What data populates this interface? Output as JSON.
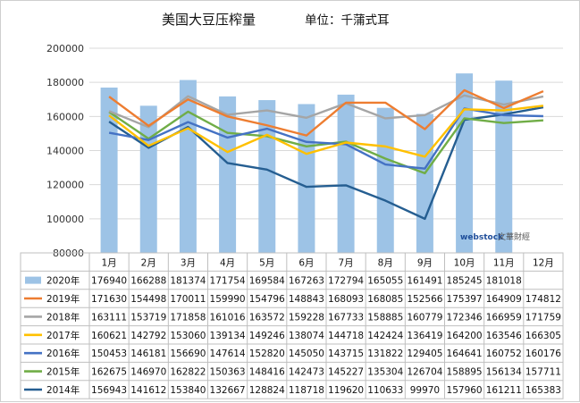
{
  "chart_data": {
    "type": "bar",
    "title": "美国大豆压榨量",
    "subtitle": "单位：千蒲式耳",
    "categories": [
      "1月",
      "2月",
      "3月",
      "4月",
      "5月",
      "6月",
      "7月",
      "8月",
      "9月",
      "10月",
      "11月",
      "12月"
    ],
    "ylim": [
      80000,
      200000
    ],
    "yticks": [
      "80000",
      "100000",
      "120000",
      "140000",
      "160000",
      "180000",
      "200000"
    ],
    "grid": true,
    "legend": "data-table",
    "series": [
      {
        "name": "2020年",
        "kind": "bar",
        "color": "#9dc3e6",
        "values": [
          176940,
          166288,
          181374,
          171754,
          169584,
          167263,
          172794,
          165055,
          161491,
          185245,
          181018,
          null
        ]
      },
      {
        "name": "2019年",
        "kind": "line",
        "color": "#ed7d31",
        "values": [
          171630,
          154498,
          170011,
          159990,
          154796,
          148843,
          168093,
          168085,
          152566,
          175397,
          164909,
          174812
        ]
      },
      {
        "name": "2018年",
        "kind": "line",
        "color": "#a5a5a5",
        "values": [
          163111,
          153719,
          171858,
          161016,
          163572,
          159228,
          167733,
          158885,
          160779,
          172346,
          166959,
          171759
        ]
      },
      {
        "name": "2017年",
        "kind": "line",
        "color": "#ffc000",
        "values": [
          160621,
          142792,
          153060,
          139134,
          149246,
          138074,
          144718,
          142424,
          136419,
          164200,
          163546,
          166305
        ]
      },
      {
        "name": "2016年",
        "kind": "line",
        "color": "#4472c4",
        "values": [
          150453,
          146181,
          156690,
          147614,
          152820,
          145050,
          143715,
          131822,
          129405,
          164641,
          160752,
          160176
        ]
      },
      {
        "name": "2015年",
        "kind": "line",
        "color": "#70ad47",
        "values": [
          162675,
          146970,
          162822,
          150363,
          148416,
          142473,
          145227,
          135304,
          126704,
          158895,
          156134,
          157711
        ]
      },
      {
        "name": "2014年",
        "kind": "line",
        "color": "#255e91",
        "values": [
          156943,
          141612,
          153840,
          132667,
          128824,
          118718,
          119620,
          110633,
          99970,
          157960,
          161211,
          165383
        ]
      }
    ],
    "table_values": [
      [
        "176940",
        "166288",
        "181374",
        "171754",
        "169584",
        "167263",
        "172794",
        "165055",
        "161491",
        "185245",
        "181018",
        ""
      ],
      [
        "171630",
        "154498",
        "170011",
        "159990",
        "154796",
        "148843",
        "168093",
        "168085",
        "152566",
        "175397",
        "164909",
        "174812"
      ],
      [
        "163111",
        "153719",
        "171858",
        "161016",
        "163572",
        "159228",
        "167733",
        "158885",
        "160779",
        "172346",
        "166959",
        "171759"
      ],
      [
        "160621",
        "142792",
        "153060",
        "139134",
        "149246",
        "138074",
        "144718",
        "142424",
        "136419",
        "164200",
        "163546",
        "166305"
      ],
      [
        "150453",
        "146181",
        "156690",
        "147614",
        "152820",
        "145050",
        "143715",
        "131822",
        "129405",
        "164641",
        "160752",
        "160176"
      ],
      [
        "162675",
        "146970",
        "162822",
        "150363",
        "148416",
        "142473",
        "145227",
        "135304",
        "126704",
        "158895",
        "156134",
        "157711"
      ],
      [
        "156943",
        "141612",
        "153840",
        "132667",
        "128824",
        "118718",
        "119620",
        "110633",
        "99970",
        "157960",
        "161211",
        "165383"
      ]
    ]
  },
  "watermark": {
    "logo": "webstock",
    "text": "文華財經"
  }
}
